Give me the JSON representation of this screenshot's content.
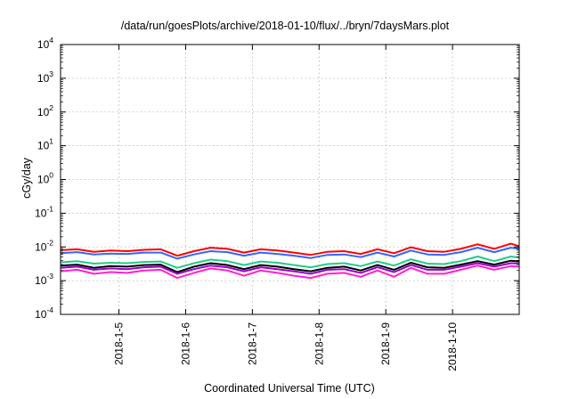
{
  "chart_data": {
    "type": "line",
    "title": "/data/run/goesPlots/archive/2018-01-10/flux/../bryn/7daysMars.plot",
    "xlabel": "Coordinated Universal Time (UTC)",
    "ylabel": "cGy/day",
    "yscale": "log",
    "ylim": [
      0.0001,
      10000
    ],
    "y_tick_labels": [
      {
        "base": "10",
        "exp": "4"
      },
      {
        "base": "10",
        "exp": "3"
      },
      {
        "base": "10",
        "exp": "2"
      },
      {
        "base": "10",
        "exp": "1"
      },
      {
        "base": "10",
        "exp": "0"
      },
      {
        "base": "10",
        "exp": "-1"
      },
      {
        "base": "10",
        "exp": "-2"
      },
      {
        "base": "10",
        "exp": "-3"
      },
      {
        "base": "10",
        "exp": "-4"
      }
    ],
    "xlim": [
      "2018-01-04 03:00",
      "2018-01-11 00:00"
    ],
    "x_ticks": [
      "2018-1-5",
      "2018-1-6",
      "2018-1-7",
      "2018-1-8",
      "2018-1-9",
      "2018-1-10"
    ],
    "grid": true,
    "x": [
      "2018-01-04 03:00",
      "2018-01-04 09:00",
      "2018-01-04 15:00",
      "2018-01-04 21:00",
      "2018-01-05 03:00",
      "2018-01-05 09:00",
      "2018-01-05 15:00",
      "2018-01-05 21:00",
      "2018-01-06 03:00",
      "2018-01-06 09:00",
      "2018-01-06 15:00",
      "2018-01-06 21:00",
      "2018-01-07 03:00",
      "2018-01-07 09:00",
      "2018-01-07 15:00",
      "2018-01-07 21:00",
      "2018-01-08 03:00",
      "2018-01-08 09:00",
      "2018-01-08 15:00",
      "2018-01-08 21:00",
      "2018-01-09 03:00",
      "2018-01-09 09:00",
      "2018-01-09 15:00",
      "2018-01-09 21:00",
      "2018-01-10 03:00",
      "2018-01-10 09:00",
      "2018-01-10 15:00",
      "2018-01-10 21:00",
      "2018-01-11 00:00"
    ],
    "series": [
      {
        "color": "#ff0000",
        "values": [
          0.008,
          0.0085,
          0.0072,
          0.0078,
          0.0075,
          0.0082,
          0.0085,
          0.0055,
          0.0075,
          0.0095,
          0.0088,
          0.0068,
          0.0085,
          0.0078,
          0.0068,
          0.0058,
          0.0072,
          0.0075,
          0.0062,
          0.0085,
          0.0065,
          0.0098,
          0.0075,
          0.0072,
          0.0088,
          0.012,
          0.0088,
          0.0125,
          0.0105
        ]
      },
      {
        "color": "#3366ff",
        "values": [
          0.0065,
          0.007,
          0.006,
          0.0063,
          0.0062,
          0.0068,
          0.0068,
          0.0045,
          0.006,
          0.0075,
          0.007,
          0.0055,
          0.0068,
          0.0062,
          0.0055,
          0.0047,
          0.0058,
          0.006,
          0.005,
          0.0068,
          0.0052,
          0.0078,
          0.006,
          0.0058,
          0.007,
          0.0095,
          0.007,
          0.0095,
          0.0088
        ]
      },
      {
        "color": "#22cc88",
        "values": [
          0.0035,
          0.0038,
          0.0032,
          0.0034,
          0.0033,
          0.0036,
          0.0037,
          0.0024,
          0.0033,
          0.0042,
          0.0038,
          0.0029,
          0.0037,
          0.0034,
          0.0029,
          0.0025,
          0.0031,
          0.0033,
          0.0027,
          0.0037,
          0.0028,
          0.0043,
          0.0032,
          0.0031,
          0.0038,
          0.0052,
          0.0038,
          0.0052,
          0.0048
        ]
      },
      {
        "color": "#000000",
        "values": [
          0.0028,
          0.003,
          0.0024,
          0.0027,
          0.0026,
          0.0029,
          0.003,
          0.0018,
          0.0026,
          0.0033,
          0.0029,
          0.0022,
          0.0029,
          0.0026,
          0.0022,
          0.0019,
          0.0024,
          0.0026,
          0.002,
          0.0029,
          0.0021,
          0.0034,
          0.0025,
          0.0024,
          0.003,
          0.0038,
          0.003,
          0.0039,
          0.0037
        ]
      },
      {
        "color": "#9900cc",
        "values": [
          0.0024,
          0.0026,
          0.0021,
          0.0023,
          0.0022,
          0.0025,
          0.0026,
          0.0016,
          0.0022,
          0.0028,
          0.0025,
          0.0019,
          0.0025,
          0.0022,
          0.0019,
          0.0016,
          0.0021,
          0.0022,
          0.0017,
          0.0025,
          0.0018,
          0.0029,
          0.0021,
          0.0021,
          0.0026,
          0.0033,
          0.0026,
          0.0033,
          0.0032
        ]
      },
      {
        "color": "#ff22cc",
        "values": [
          0.0019,
          0.0021,
          0.0016,
          0.0018,
          0.0017,
          0.002,
          0.0021,
          0.0012,
          0.0017,
          0.0023,
          0.002,
          0.0014,
          0.002,
          0.0017,
          0.0014,
          0.0012,
          0.0016,
          0.0017,
          0.0013,
          0.002,
          0.0013,
          0.0024,
          0.0016,
          0.0016,
          0.0021,
          0.0028,
          0.0021,
          0.0027,
          0.0026
        ]
      }
    ]
  }
}
